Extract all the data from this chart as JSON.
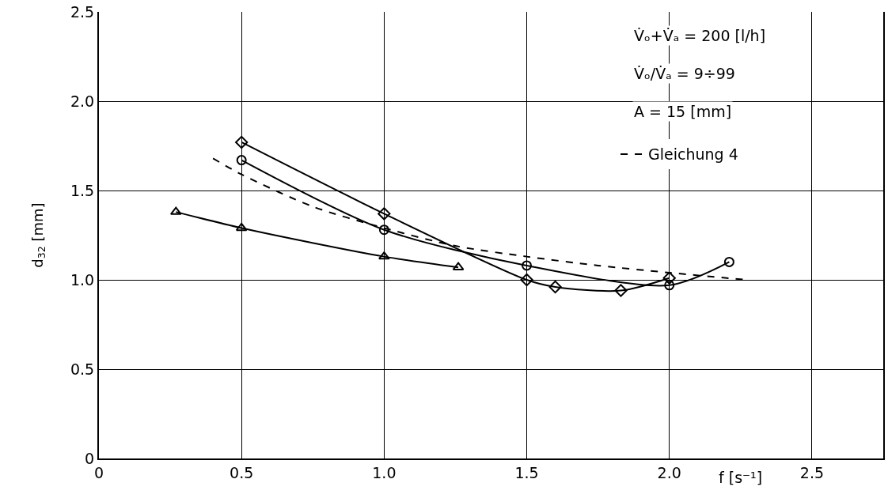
{
  "chart_data": {
    "type": "line",
    "xlabel": "f [s⁻¹]",
    "ylabel": "d$_{32}$ [mm]",
    "annotations": [
      "V̇ₒ+V̇ₐ = 200 [l/h]",
      "V̇ₒ/V̇ₐ = 9÷99",
      "A = 15 [mm]"
    ],
    "series": [
      {
        "color": "#000000",
        "marker": "triangle",
        "x": [
          0.27,
          0.5,
          1.0,
          1.26
        ],
        "values": [
          1.38,
          1.29,
          1.13,
          1.07
        ]
      },
      {
        "color": "#000000",
        "marker": "diamond",
        "x": [
          0.5,
          1.0,
          1.5,
          1.6,
          1.83,
          2.0
        ],
        "values": [
          1.77,
          1.37,
          1.0,
          0.96,
          0.94,
          1.01
        ]
      },
      {
        "color": "#000000",
        "marker": "circle",
        "x": [
          0.5,
          1.0,
          1.5,
          2.0,
          2.21
        ],
        "values": [
          1.67,
          1.28,
          1.08,
          0.97,
          1.1
        ]
      },
      {
        "name": "Gleichung 4",
        "color": "#000000",
        "marker": "none",
        "line_style": "dashed",
        "x": [
          0.4,
          0.5,
          0.75,
          1.0,
          1.25,
          1.5,
          1.75,
          2.0,
          2.27
        ],
        "values": [
          1.68,
          1.59,
          1.41,
          1.29,
          1.19,
          1.13,
          1.08,
          1.04,
          1.0
        ]
      }
    ],
    "xlim": [
      0,
      2.75
    ],
    "xticks": [
      0,
      {
        "value": 0.5,
        "label": "0.5"
      },
      {
        "value": 1,
        "label": "1.0"
      },
      {
        "value": 1.5,
        "label": "1.5"
      },
      {
        "value": 2,
        "label": "2.0"
      },
      {
        "value": 2.5,
        "label": "2.5"
      }
    ],
    "ylim": [
      0,
      2.5
    ],
    "yticks": [
      0,
      {
        "value": 0.5,
        "label": "0.5"
      },
      {
        "value": 1,
        "label": "1.0"
      },
      {
        "value": 1.5,
        "label": "1.5"
      },
      {
        "value": 2,
        "label": "2.0"
      },
      {
        "value": 2.5,
        "label": "2.5"
      }
    ],
    "grid": true,
    "legend": "top right"
  }
}
